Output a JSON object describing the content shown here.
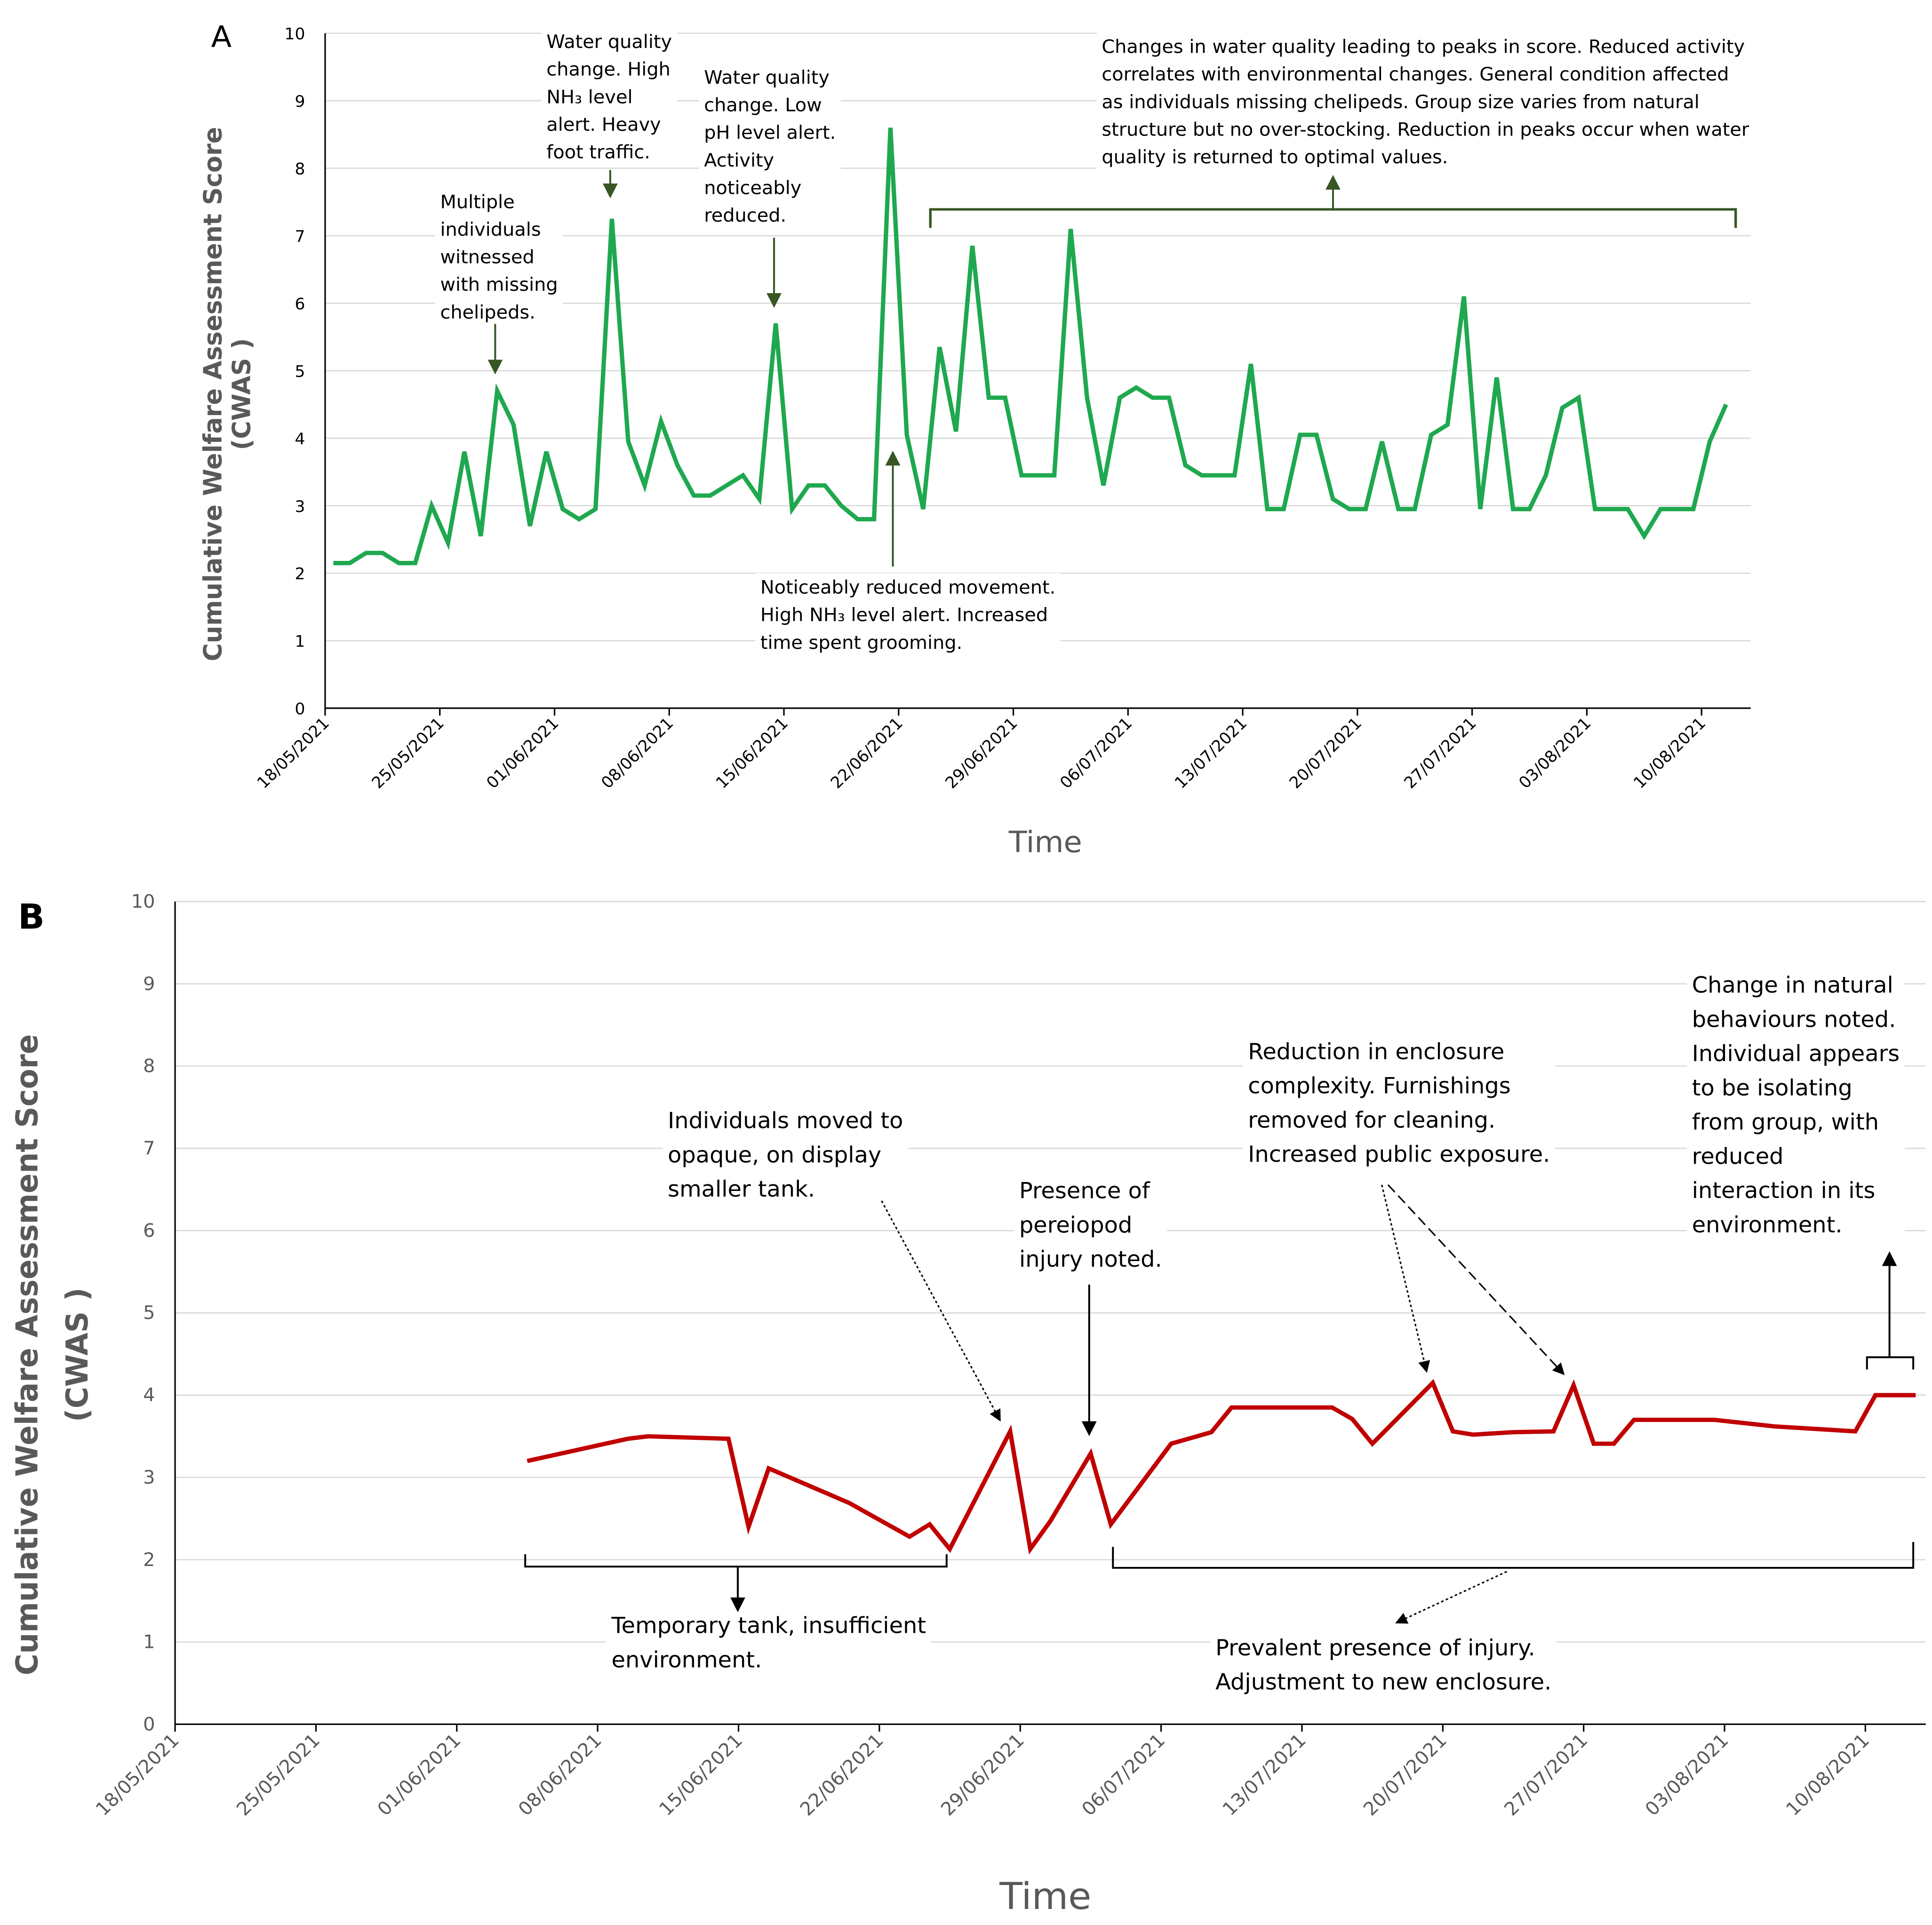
{
  "chart_data": [
    {
      "type": "line",
      "panel_label": "A",
      "ylabel": [
        "Cumulative Welfare Assessment Score",
        "(CWAS )"
      ],
      "xlabel": "Time",
      "x": [
        "18/05/2021",
        "19/05/2021",
        "20/05/2021",
        "21/05/2021",
        "22/05/2021",
        "23/05/2021",
        "24/05/2021",
        "25/05/2021",
        "26/05/2021",
        "27/05/2021",
        "28/05/2021",
        "29/05/2021",
        "30/05/2021",
        "31/05/2021",
        "01/06/2021",
        "02/06/2021",
        "03/06/2021",
        "04/06/2021",
        "05/06/2021",
        "06/06/2021",
        "07/06/2021",
        "08/06/2021",
        "09/06/2021",
        "10/06/2021",
        "11/06/2021",
        "12/06/2021",
        "13/06/2021",
        "14/06/2021",
        "15/06/2021",
        "16/06/2021",
        "17/06/2021",
        "18/06/2021",
        "19/06/2021",
        "20/06/2021",
        "21/06/2021",
        "22/06/2021",
        "23/06/2021",
        "24/06/2021",
        "25/06/2021",
        "26/06/2021",
        "27/06/2021",
        "28/06/2021",
        "29/06/2021",
        "30/06/2021",
        "01/07/2021",
        "02/07/2021",
        "03/07/2021",
        "04/07/2021",
        "05/07/2021",
        "06/07/2021",
        "07/07/2021",
        "08/07/2021",
        "09/07/2021",
        "10/07/2021",
        "11/07/2021",
        "12/07/2021",
        "13/07/2021",
        "14/07/2021",
        "15/07/2021",
        "16/07/2021",
        "17/07/2021",
        "18/07/2021",
        "19/07/2021",
        "20/07/2021",
        "21/07/2021",
        "22/07/2021",
        "23/07/2021",
        "24/07/2021",
        "25/07/2021",
        "26/07/2021",
        "27/07/2021",
        "28/07/2021",
        "29/07/2021",
        "30/07/2021",
        "31/07/2021",
        "01/08/2021",
        "02/08/2021",
        "03/08/2021",
        "04/08/2021",
        "05/08/2021",
        "06/08/2021",
        "07/08/2021",
        "08/08/2021",
        "09/08/2021",
        "10/08/2021",
        "11/08/2021"
      ],
      "series": [
        {
          "color": "#1fa84f",
          "values": [
            2.15,
            2.15,
            2.3,
            2.3,
            2.15,
            2.15,
            3.0,
            2.45,
            3.8,
            2.55,
            4.7,
            4.2,
            2.7,
            3.8,
            2.95,
            2.8,
            2.95,
            7.25,
            3.95,
            3.3,
            4.25,
            3.6,
            3.15,
            3.15,
            3.3,
            3.45,
            3.1,
            5.7,
            2.95,
            3.3,
            3.3,
            3.0,
            2.8,
            2.8,
            8.6,
            4.05,
            2.95,
            5.35,
            4.1,
            6.85,
            4.6,
            4.6,
            3.45,
            3.45,
            3.45,
            7.1,
            4.6,
            3.3,
            4.6,
            4.75,
            4.6,
            4.6,
            3.6,
            3.45,
            3.45,
            3.45,
            5.1,
            2.95,
            2.95,
            4.05,
            4.05,
            3.1,
            2.95,
            2.95,
            3.95,
            2.95,
            2.95,
            4.05,
            4.2,
            6.1,
            2.95,
            4.9,
            2.95,
            2.95,
            3.45,
            4.45,
            4.6,
            2.95,
            2.95,
            2.95,
            2.55,
            2.95,
            2.95,
            2.95,
            3.95,
            4.5
          ]
        }
      ],
      "xlim": [
        "18/05/2021",
        "13/08/2021"
      ],
      "xticks": [
        "18/05/2021",
        "25/05/2021",
        "01/06/2021",
        "08/06/2021",
        "15/06/2021",
        "22/06/2021",
        "29/06/2021",
        "06/07/2021",
        "13/07/2021",
        "20/07/2021",
        "27/07/2021",
        "03/08/2021",
        "10/08/2021"
      ],
      "ylim": [
        0,
        10
      ],
      "yticks": [
        0,
        1,
        2,
        3,
        4,
        5,
        6,
        7,
        8,
        9,
        10
      ],
      "grid": true,
      "annotations": [
        [
          "Multiple",
          "individuals",
          "witnessed",
          "with missing",
          "chelipeds."
        ],
        [
          "Water quality",
          "change. High",
          "NH₃ level",
          "alert. Heavy",
          "foot traffic."
        ],
        [
          "Water quality",
          "change. Low",
          "pH level alert.",
          "Activity",
          "noticeably",
          "reduced."
        ],
        [
          "Noticeably reduced movement.",
          "High NH₃ level alert. Increased",
          "time spent grooming."
        ],
        [
          "Changes in water quality leading to peaks in score. Reduced activity",
          "correlates with environmental changes. General condition affected",
          "as individuals missing chelipeds. Group size varies from natural",
          "structure but no over-stocking. Reduction in peaks occur when water",
          "quality is returned to optimal values."
        ]
      ]
    },
    {
      "type": "line",
      "panel_label": "B",
      "ylabel": [
        "Cumulative Welfare Assessment Score",
        "(CWAS )"
      ],
      "xlabel": "Time",
      "x": [
        "04/06/2021",
        "09/06/2021",
        "10/06/2021",
        "14/06/2021",
        "15/06/2021",
        "16/06/2021",
        "20/06/2021",
        "23/06/2021",
        "24/06/2021",
        "25/06/2021",
        "28/06/2021",
        "29/06/2021",
        "30/06/2021",
        "02/07/2021",
        "03/07/2021",
        "06/07/2021",
        "08/07/2021",
        "09/07/2021",
        "14/07/2021",
        "15/07/2021",
        "16/07/2021",
        "19/07/2021",
        "20/07/2021",
        "21/07/2021",
        "23/07/2021",
        "25/07/2021",
        "26/07/2021",
        "27/07/2021",
        "28/07/2021",
        "29/07/2021",
        "02/08/2021",
        "05/08/2021",
        "09/08/2021",
        "10/08/2021",
        "12/08/2021"
      ],
      "series": [
        {
          "color": "#c00000",
          "values": [
            3.2,
            3.47,
            3.5,
            3.47,
            2.4,
            3.11,
            2.69,
            2.28,
            2.43,
            2.13,
            3.56,
            2.13,
            2.47,
            3.29,
            2.43,
            3.41,
            3.55,
            3.85,
            3.85,
            3.71,
            3.41,
            4.15,
            3.56,
            3.52,
            3.55,
            3.56,
            4.12,
            3.41,
            3.41,
            3.7,
            3.7,
            3.62,
            3.56,
            4.0,
            4.0
          ]
        }
      ],
      "xlim": [
        "18/05/2021",
        "13/08/2021"
      ],
      "xticks": [
        "18/05/2021",
        "25/05/2021",
        "01/06/2021",
        "08/06/2021",
        "15/06/2021",
        "22/06/2021",
        "29/06/2021",
        "06/07/2021",
        "13/07/2021",
        "20/07/2021",
        "27/07/2021",
        "03/08/2021",
        "10/08/2021"
      ],
      "ylim": [
        0,
        10
      ],
      "yticks": [
        0,
        1,
        2,
        3,
        4,
        5,
        6,
        7,
        8,
        9,
        10
      ],
      "grid": true,
      "annotations": [
        [
          "Individuals moved to",
          "opaque, on display",
          "smaller tank."
        ],
        [
          "Presence of",
          "pereiopod",
          "injury noted."
        ],
        [
          "Reduction in enclosure",
          "complexity. Furnishings",
          "removed for cleaning.",
          "Increased public exposure."
        ],
        [
          "Change in natural",
          "behaviours noted.",
          "Individual appears",
          "to be isolating",
          "from group, with",
          "reduced",
          "interaction in its",
          "environment."
        ],
        [
          "Temporary tank, insufficient",
          "environment."
        ],
        [
          "Prevalent presence of injury.",
          "Adjustment to new enclosure."
        ]
      ]
    }
  ]
}
